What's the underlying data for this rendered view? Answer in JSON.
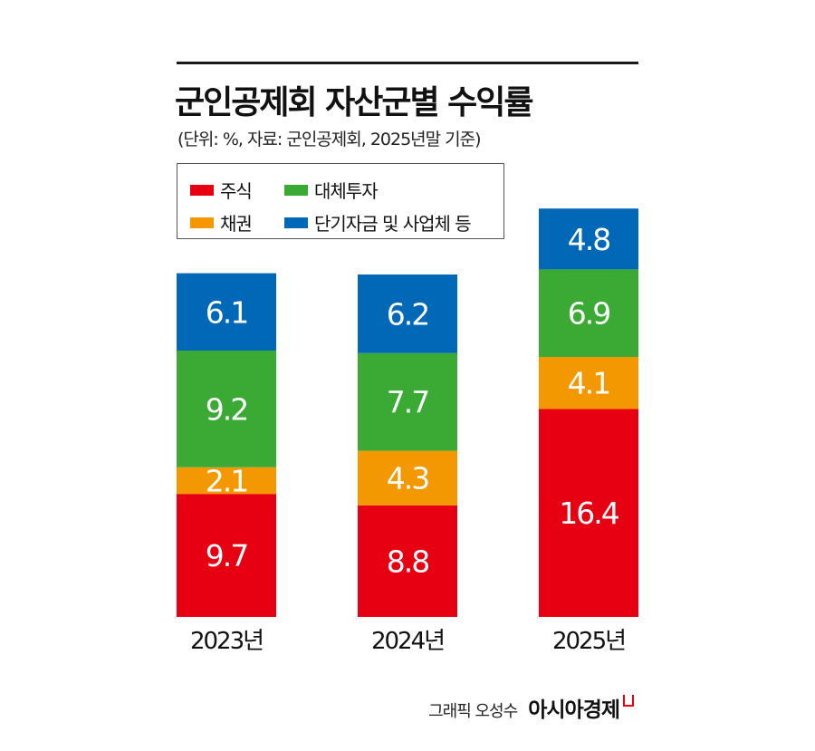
{
  "header": {
    "title": "군인공제회 자산군별 수익률",
    "subtitle": "(단위: %, 자료: 군인공제회, 2025년말 기준)"
  },
  "legend": {
    "items": [
      {
        "label": "주식",
        "color": "#e60012"
      },
      {
        "label": "대체투자",
        "color": "#3aaa35"
      },
      {
        "label": "채권",
        "color": "#f39800"
      },
      {
        "label": "단기자금 및 사업체 등",
        "color": "#0068b7"
      }
    ]
  },
  "chart_data": {
    "type": "bar",
    "stacked": true,
    "categories": [
      "2023년",
      "2024년",
      "2025년"
    ],
    "series": [
      {
        "name": "주식",
        "color": "#e60012",
        "values": [
          9.7,
          8.8,
          16.4
        ]
      },
      {
        "name": "채권",
        "color": "#f39800",
        "values": [
          2.1,
          4.3,
          4.1
        ]
      },
      {
        "name": "대체투자",
        "color": "#3aaa35",
        "values": [
          9.2,
          7.7,
          6.9
        ]
      },
      {
        "name": "단기자금 및 사업체 등",
        "color": "#0068b7",
        "values": [
          6.1,
          6.2,
          4.8
        ]
      }
    ],
    "value_labels": [
      [
        "9.7",
        "8.8",
        "16.4"
      ],
      [
        "2.1",
        "4.3",
        "4.1"
      ],
      [
        "9.2",
        "7.7",
        "6.9"
      ],
      [
        "6.1",
        "6.2",
        "4.8"
      ]
    ],
    "grid": false,
    "legend_position": "top-left"
  },
  "footer": {
    "credit": "그래픽 오성수",
    "brand": "아시아경제"
  }
}
